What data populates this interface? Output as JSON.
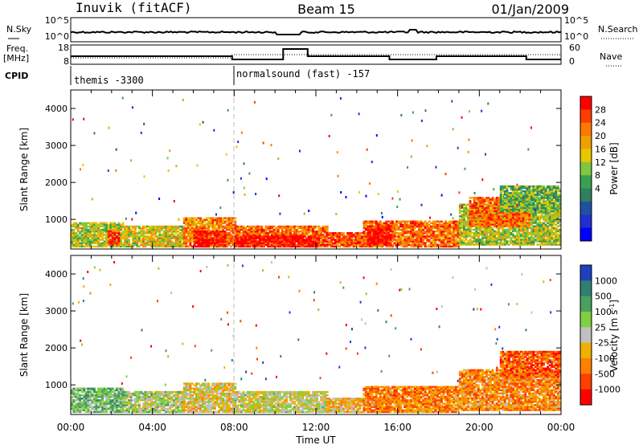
{
  "header": {
    "station": "Inuvik (fitACF)",
    "beam": "Beam 15",
    "date": "01/Jan/2009"
  },
  "time_axis": {
    "label": "Time UT",
    "ticks": [
      "00:00",
      "04:00",
      "08:00",
      "12:00",
      "16:00",
      "20:00",
      "00:00"
    ]
  },
  "panels": {
    "nsky": {
      "label": "N.Sky",
      "right_label": "N.Search",
      "ticks": [
        "10^5",
        "10^0"
      ],
      "right_ticks": [
        "10^5",
        "10^0"
      ]
    },
    "freq": {
      "label_line1": "Freq.",
      "label_line2": "[MHz]",
      "right_label": "Nave",
      "ticks": [
        "18",
        "8"
      ],
      "right_ticks": [
        "60",
        "0"
      ]
    },
    "cpid": {
      "label": "CPID",
      "segments": [
        {
          "name": "themis -3300",
          "start_hour": 0,
          "end_hour": 7.9
        },
        {
          "name": "normalsound (fast) -157",
          "start_hour": 7.9,
          "end_hour": 24
        }
      ]
    }
  },
  "chart_data": [
    {
      "type": "heatmap",
      "name": "power",
      "xlabel": "Time UT",
      "ylabel": "Slant Range [km]",
      "xlim_hours": [
        0,
        24
      ],
      "ylim": [
        200,
        4500
      ],
      "yticks": [
        "1000",
        "2000",
        "3000",
        "4000"
      ],
      "colorbar": {
        "label": "Power [dB]",
        "ticks": [
          "28",
          "24",
          "20",
          "16",
          "12",
          "8",
          "4"
        ],
        "colors": [
          "#ff0000",
          "#ff3c00",
          "#ff7800",
          "#f0a000",
          "#e6c800",
          "#7fc841",
          "#3aa050",
          "#2f8060",
          "#2050a0",
          "#2030d0",
          "#0000ff"
        ]
      },
      "echo_regions": [
        {
          "t0": 0.0,
          "t1": 2.6,
          "r0": 250,
          "r1": 900,
          "level": 0.55
        },
        {
          "t0": 1.8,
          "t1": 2.4,
          "r0": 300,
          "r1": 700,
          "level": 0.9
        },
        {
          "t0": 2.6,
          "t1": 5.5,
          "r0": 250,
          "r1": 800,
          "level": 0.6
        },
        {
          "t0": 5.5,
          "t1": 8.0,
          "r0": 250,
          "r1": 1050,
          "level": 0.75
        },
        {
          "t0": 6.0,
          "t1": 7.5,
          "r0": 250,
          "r1": 700,
          "level": 0.95
        },
        {
          "t0": 8.0,
          "t1": 12.5,
          "r0": 250,
          "r1": 800,
          "level": 0.8
        },
        {
          "t0": 8.0,
          "t1": 12.0,
          "r0": 250,
          "r1": 550,
          "level": 0.97
        },
        {
          "t0": 12.5,
          "t1": 14.3,
          "r0": 250,
          "r1": 650,
          "level": 0.85
        },
        {
          "t0": 14.3,
          "t1": 19.0,
          "r0": 250,
          "r1": 950,
          "level": 0.8
        },
        {
          "t0": 14.5,
          "t1": 15.6,
          "r0": 300,
          "r1": 800,
          "level": 0.97
        },
        {
          "t0": 19.0,
          "t1": 24.0,
          "r0": 300,
          "r1": 1400,
          "level": 0.55
        },
        {
          "t0": 19.5,
          "t1": 22.5,
          "r0": 800,
          "r1": 1600,
          "level": 0.8
        },
        {
          "t0": 21.0,
          "t1": 24.0,
          "r0": 1200,
          "r1": 1900,
          "level": 0.45
        }
      ]
    },
    {
      "type": "heatmap",
      "name": "velocity",
      "xlabel": "Time UT",
      "ylabel": "Slant Range [km]",
      "xlim_hours": [
        0,
        24
      ],
      "ylim": [
        200,
        4500
      ],
      "yticks": [
        "1000",
        "2000",
        "3000",
        "4000"
      ],
      "colorbar": {
        "label": "Velocity [m s^-1]",
        "ticks": [
          "1000",
          "500",
          "100",
          "25",
          "-25",
          "-100",
          "-500",
          "-1000"
        ],
        "colors": [
          "#2040c0",
          "#2f8070",
          "#4aa060",
          "#7fd040",
          "#c0c0c0",
          "#f0b000",
          "#ff8000",
          "#ff4000",
          "#ff0000"
        ]
      },
      "echo_regions": [
        {
          "t0": 0.0,
          "t1": 2.6,
          "r0": 250,
          "r1": 900,
          "level": 0.35
        },
        {
          "t0": 2.6,
          "t1": 5.5,
          "r0": 250,
          "r1": 800,
          "level": 0.45
        },
        {
          "t0": 5.5,
          "t1": 8.0,
          "r0": 250,
          "r1": 1050,
          "level": 0.55
        },
        {
          "t0": 8.0,
          "t1": 12.5,
          "r0": 250,
          "r1": 800,
          "level": 0.5
        },
        {
          "t0": 12.5,
          "t1": 14.3,
          "r0": 250,
          "r1": 650,
          "level": 0.6
        },
        {
          "t0": 14.3,
          "t1": 19.0,
          "r0": 250,
          "r1": 950,
          "level": 0.72
        },
        {
          "t0": 19.0,
          "t1": 24.0,
          "r0": 300,
          "r1": 1400,
          "level": 0.7
        },
        {
          "t0": 21.0,
          "t1": 24.0,
          "r0": 1200,
          "r1": 1900,
          "level": 0.8
        }
      ]
    }
  ]
}
